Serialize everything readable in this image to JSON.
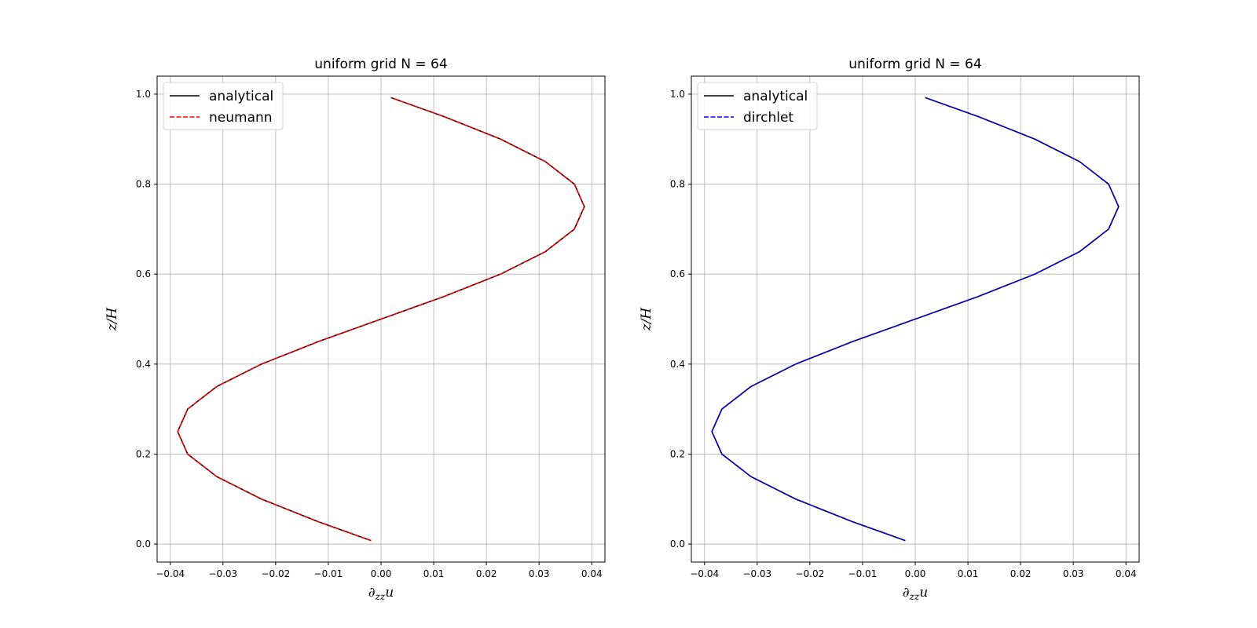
{
  "chart_data": [
    {
      "type": "line",
      "title": "uniform grid N = 64",
      "xlabel": "∂zzu",
      "ylabel": "z/H",
      "xlim": [
        -0.0425,
        0.0425
      ],
      "ylim": [
        -0.04,
        1.04
      ],
      "xticks": [
        -0.04,
        -0.03,
        -0.02,
        -0.01,
        0.0,
        0.01,
        0.02,
        0.03,
        0.04
      ],
      "xtick_labels": [
        "−0.04",
        "−0.03",
        "−0.02",
        "−0.01",
        "0.00",
        "0.01",
        "0.02",
        "0.03",
        "0.04"
      ],
      "yticks": [
        0.0,
        0.2,
        0.4,
        0.6,
        0.8,
        1.0
      ],
      "ytick_labels": [
        "0.0",
        "0.2",
        "0.4",
        "0.6",
        "0.8",
        "1.0"
      ],
      "grid": true,
      "legend": "upper-left",
      "series": [
        {
          "name": "analytical",
          "color": "#000000",
          "style": "solid",
          "z": [
            0.0078,
            0.05,
            0.1,
            0.15,
            0.2,
            0.25,
            0.3,
            0.35,
            0.4,
            0.45,
            0.5,
            0.55,
            0.6,
            0.65,
            0.7,
            0.75,
            0.8,
            0.85,
            0.9,
            0.95,
            0.9922
          ],
          "x": [
            -0.0019,
            -0.012,
            -0.0227,
            -0.0312,
            -0.0367,
            -0.0386,
            -0.0367,
            -0.0312,
            -0.0227,
            -0.0119,
            0.0,
            0.0119,
            0.0227,
            0.0312,
            0.0367,
            0.0386,
            0.0367,
            0.0312,
            0.0227,
            0.012,
            0.0019
          ]
        },
        {
          "name": "neumann",
          "color": "#ff0000",
          "style": "dashed",
          "z": [
            0.0078,
            0.05,
            0.1,
            0.15,
            0.2,
            0.25,
            0.3,
            0.35,
            0.4,
            0.45,
            0.5,
            0.55,
            0.6,
            0.65,
            0.7,
            0.75,
            0.8,
            0.85,
            0.9,
            0.95,
            0.9922
          ],
          "x": [
            -0.0019,
            -0.012,
            -0.0227,
            -0.0312,
            -0.0367,
            -0.0386,
            -0.0367,
            -0.0312,
            -0.0227,
            -0.0119,
            0.0,
            0.0119,
            0.0227,
            0.0312,
            0.0367,
            0.0386,
            0.0367,
            0.0312,
            0.0227,
            0.012,
            0.0019
          ]
        }
      ]
    },
    {
      "type": "line",
      "title": "uniform grid N = 64",
      "xlabel": "∂zzu",
      "ylabel": "z/H",
      "xlim": [
        -0.0425,
        0.0425
      ],
      "ylim": [
        -0.04,
        1.04
      ],
      "xticks": [
        -0.04,
        -0.03,
        -0.02,
        -0.01,
        0.0,
        0.01,
        0.02,
        0.03,
        0.04
      ],
      "xtick_labels": [
        "−0.04",
        "−0.03",
        "−0.02",
        "−0.01",
        "0.00",
        "0.01",
        "0.02",
        "0.03",
        "0.04"
      ],
      "yticks": [
        0.0,
        0.2,
        0.4,
        0.6,
        0.8,
        1.0
      ],
      "ytick_labels": [
        "0.0",
        "0.2",
        "0.4",
        "0.6",
        "0.8",
        "1.0"
      ],
      "grid": true,
      "legend": "upper-left",
      "series": [
        {
          "name": "analytical",
          "color": "#000000",
          "style": "solid",
          "z": [
            0.0078,
            0.05,
            0.1,
            0.15,
            0.2,
            0.25,
            0.3,
            0.35,
            0.4,
            0.45,
            0.5,
            0.55,
            0.6,
            0.65,
            0.7,
            0.75,
            0.8,
            0.85,
            0.9,
            0.95,
            0.9922
          ],
          "x": [
            -0.0019,
            -0.012,
            -0.0227,
            -0.0312,
            -0.0367,
            -0.0386,
            -0.0367,
            -0.0312,
            -0.0227,
            -0.0119,
            0.0,
            0.0119,
            0.0227,
            0.0312,
            0.0367,
            0.0386,
            0.0367,
            0.0312,
            0.0227,
            0.012,
            0.0019
          ]
        },
        {
          "name": "dirchlet",
          "color": "#0000ff",
          "style": "dashed",
          "z": [
            0.0078,
            0.05,
            0.1,
            0.15,
            0.2,
            0.25,
            0.3,
            0.35,
            0.4,
            0.45,
            0.5,
            0.55,
            0.6,
            0.65,
            0.7,
            0.75,
            0.8,
            0.85,
            0.9,
            0.95,
            0.9922
          ],
          "x": [
            -0.0019,
            -0.012,
            -0.0227,
            -0.0312,
            -0.0367,
            -0.0386,
            -0.0367,
            -0.0312,
            -0.0227,
            -0.0119,
            0.0,
            0.0119,
            0.0227,
            0.0312,
            0.0367,
            0.0386,
            0.0367,
            0.0312,
            0.0227,
            0.012,
            0.0019
          ]
        }
      ]
    }
  ]
}
